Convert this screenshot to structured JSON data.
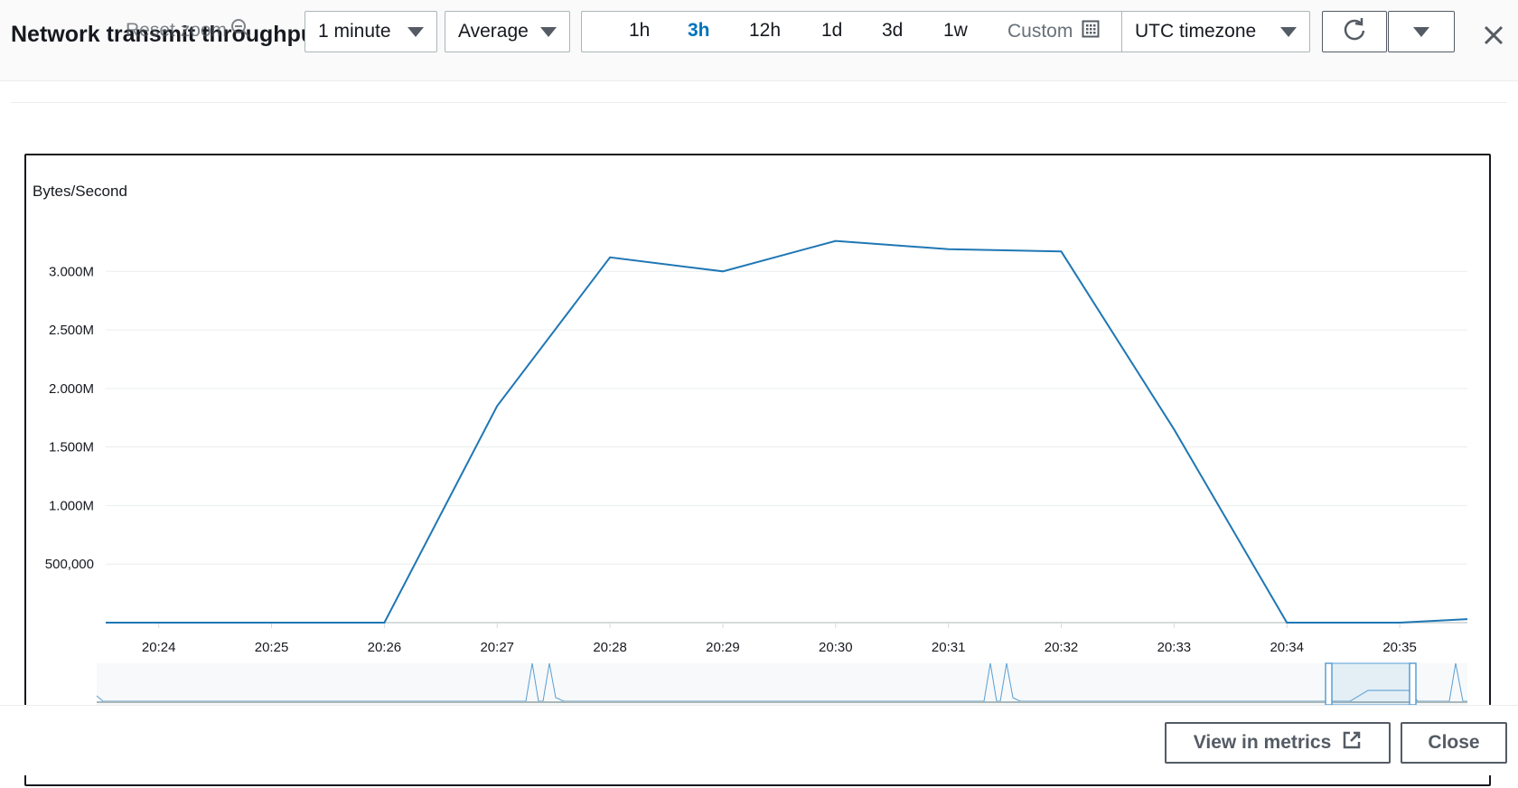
{
  "header": {
    "title": "Network transmit throughput",
    "reset_zoom": "Reset zoom",
    "period_select": "1 minute",
    "stat_select": "Average",
    "ranges": [
      "1h",
      "3h",
      "12h",
      "1d",
      "3d",
      "1w"
    ],
    "active_range": "3h",
    "custom_label": "Custom",
    "timezone_select": "UTC timezone"
  },
  "footer": {
    "view_in_metrics": "View in metrics",
    "close": "Close"
  },
  "colors": {
    "line": "#1f77b4",
    "active_range": "#0073bb",
    "grid": "#eaeded"
  },
  "chart_data": {
    "type": "line",
    "ylabel": "Bytes/Second",
    "y_tick_labels": [
      "500,000",
      "1.000M",
      "1.500M",
      "2.000M",
      "2.500M",
      "3.000M"
    ],
    "y_ticks": [
      500000,
      1000000,
      1500000,
      2000000,
      2500000,
      3000000
    ],
    "ylim": [
      0,
      3450000
    ],
    "x_tick_labels": [
      "20:24",
      "20:25",
      "20:26",
      "20:27",
      "20:28",
      "20:29",
      "20:30",
      "20:31",
      "20:32",
      "20:33",
      "20:34",
      "20:35"
    ],
    "xlim_minutes_from_2024": [
      -0.47,
      11.6
    ],
    "series": [
      {
        "x": [
          -0.47,
          2,
          3,
          4,
          5,
          6,
          7,
          8,
          9,
          10,
          11,
          11.6
        ],
        "y": [
          0,
          0,
          1850000,
          3120000,
          3000000,
          3260000,
          3190000,
          3170000,
          1650000,
          0,
          0,
          30000
        ]
      }
    ],
    "grid": true
  }
}
